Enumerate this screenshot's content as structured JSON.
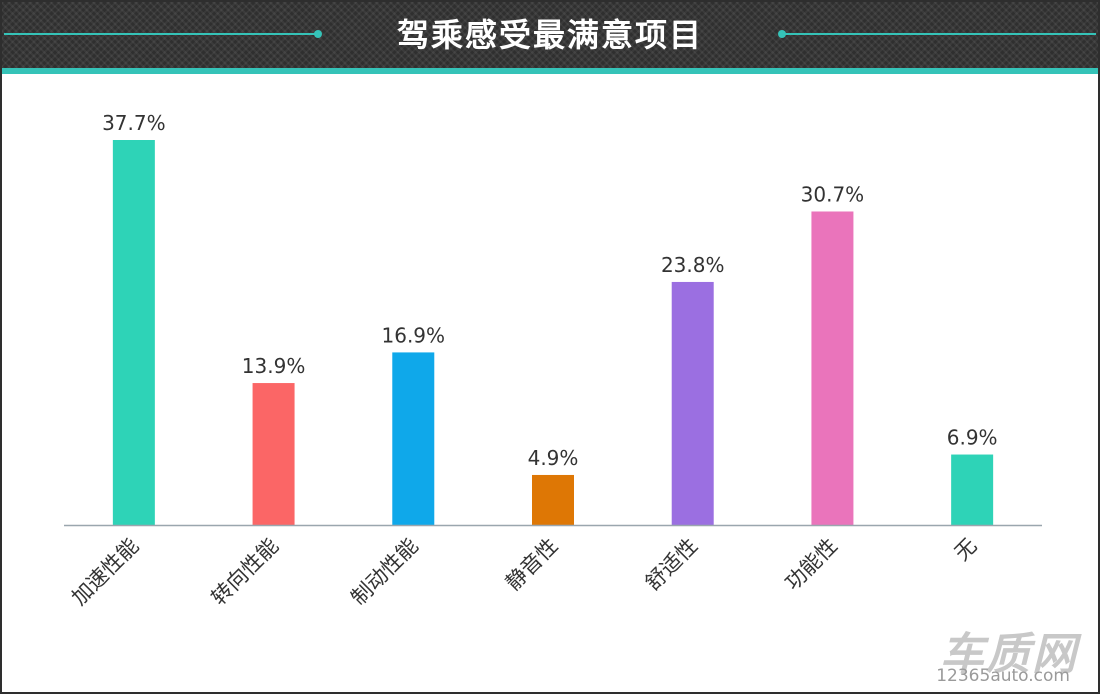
{
  "header": {
    "title": "驾乘感受最满意项目"
  },
  "colors": {
    "header_bg": "#2f2f2f",
    "accent": "#35c3b8",
    "axis": "#9aa6ae",
    "label": "#333333"
  },
  "chart_data": {
    "type": "bar",
    "title": "驾乘感受最满意项目",
    "xlabel": "",
    "ylabel": "",
    "ylim": [
      0,
      40
    ],
    "grid": false,
    "legend": "none",
    "categories": [
      "加速性能",
      "转向性能",
      "制动性能",
      "静音性",
      "舒适性",
      "功能性",
      "无"
    ],
    "values": [
      37.7,
      13.9,
      16.9,
      4.9,
      23.8,
      30.7,
      6.9
    ],
    "value_labels": [
      "37.7%",
      "13.9%",
      "16.9%",
      "4.9%",
      "23.8%",
      "30.7%",
      "6.9%"
    ],
    "bar_colors": [
      "#2ed3b7",
      "#fb6666",
      "#0fa8ea",
      "#de7705",
      "#9b6fe1",
      "#ea74bb",
      "#2ed3b7"
    ]
  },
  "watermark": {
    "brand": "车质网",
    "site": "12365auto.com"
  }
}
